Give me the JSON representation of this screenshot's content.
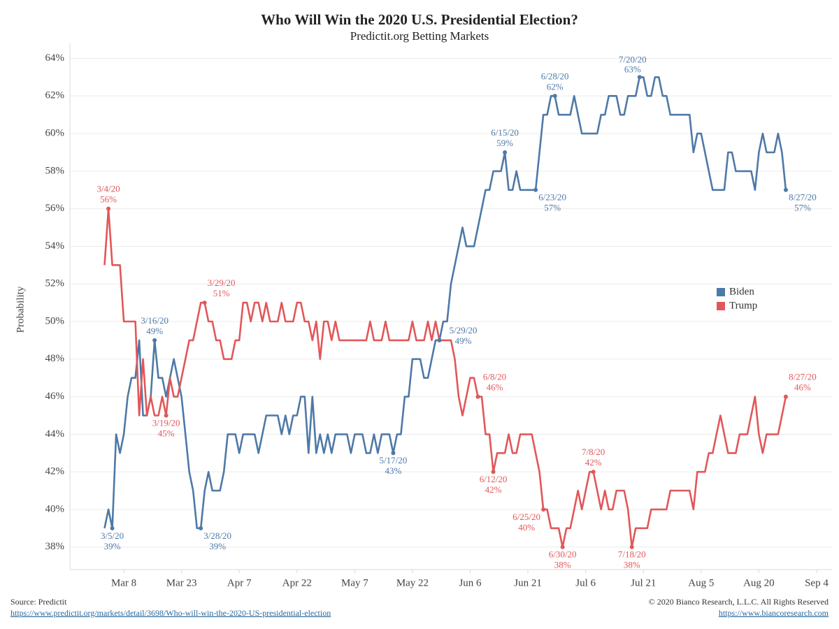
{
  "chart_data": {
    "type": "line",
    "title": "Who Will Win the 2020 U.S. Presidential Election?",
    "subtitle": "Predictit.org Betting Markets",
    "y_label": "Probability",
    "legend": "right",
    "grid": true,
    "xlim": [
      "2/23/20",
      "9/8/20"
    ],
    "xticks": [
      {
        "value": "3/8/20",
        "label": "Mar 8"
      },
      {
        "value": "3/23/20",
        "label": "Mar 23"
      },
      {
        "value": "4/7/20",
        "label": "Apr 7"
      },
      {
        "value": "4/22/20",
        "label": "Apr 22"
      },
      {
        "value": "5/7/20",
        "label": "May 7"
      },
      {
        "value": "5/22/20",
        "label": "May 22"
      },
      {
        "value": "6/6/20",
        "label": "Jun 6"
      },
      {
        "value": "6/21/20",
        "label": "Jun 21"
      },
      {
        "value": "7/6/20",
        "label": "Jul 6"
      },
      {
        "value": "7/21/20",
        "label": "Jul 21"
      },
      {
        "value": "8/5/20",
        "label": "Aug 5"
      },
      {
        "value": "8/20/20",
        "label": "Aug 20"
      },
      {
        "value": "9/4/20",
        "label": "Sep 4"
      }
    ],
    "ylim": [
      36.8,
      64.8
    ],
    "yticks": [
      {
        "value": 38,
        "label": "38%"
      },
      {
        "value": 40,
        "label": "40%"
      },
      {
        "value": 42,
        "label": "42%"
      },
      {
        "value": 44,
        "label": "44%"
      },
      {
        "value": 46,
        "label": "46%"
      },
      {
        "value": 48,
        "label": "48%"
      },
      {
        "value": 50,
        "label": "50%"
      },
      {
        "value": 52,
        "label": "52%"
      },
      {
        "value": 54,
        "label": "54%"
      },
      {
        "value": 56,
        "label": "56%"
      },
      {
        "value": 58,
        "label": "58%"
      },
      {
        "value": 60,
        "label": "60%"
      },
      {
        "value": 62,
        "label": "62%"
      },
      {
        "value": 64,
        "label": "64%"
      }
    ],
    "x": [
      "3/3/20",
      "3/4/20",
      "3/5/20",
      "3/6/20",
      "3/7/20",
      "3/8/20",
      "3/9/20",
      "3/10/20",
      "3/11/20",
      "3/12/20",
      "3/13/20",
      "3/14/20",
      "3/15/20",
      "3/16/20",
      "3/17/20",
      "3/18/20",
      "3/19/20",
      "3/20/20",
      "3/21/20",
      "3/22/20",
      "3/23/20",
      "3/24/20",
      "3/25/20",
      "3/26/20",
      "3/27/20",
      "3/28/20",
      "3/29/20",
      "3/30/20",
      "3/31/20",
      "4/1/20",
      "4/2/20",
      "4/3/20",
      "4/4/20",
      "4/5/20",
      "4/6/20",
      "4/7/20",
      "4/8/20",
      "4/9/20",
      "4/10/20",
      "4/11/20",
      "4/12/20",
      "4/13/20",
      "4/14/20",
      "4/15/20",
      "4/16/20",
      "4/17/20",
      "4/18/20",
      "4/19/20",
      "4/20/20",
      "4/21/20",
      "4/22/20",
      "4/23/20",
      "4/24/20",
      "4/25/20",
      "4/26/20",
      "4/27/20",
      "4/28/20",
      "4/29/20",
      "4/30/20",
      "5/1/20",
      "5/2/20",
      "5/3/20",
      "5/4/20",
      "5/5/20",
      "5/6/20",
      "5/7/20",
      "5/8/20",
      "5/9/20",
      "5/10/20",
      "5/11/20",
      "5/12/20",
      "5/13/20",
      "5/14/20",
      "5/15/20",
      "5/16/20",
      "5/17/20",
      "5/18/20",
      "5/19/20",
      "5/20/20",
      "5/21/20",
      "5/22/20",
      "5/23/20",
      "5/24/20",
      "5/25/20",
      "5/26/20",
      "5/27/20",
      "5/28/20",
      "5/29/20",
      "5/30/20",
      "5/31/20",
      "6/1/20",
      "6/2/20",
      "6/3/20",
      "6/4/20",
      "6/5/20",
      "6/6/20",
      "6/7/20",
      "6/8/20",
      "6/9/20",
      "6/10/20",
      "6/11/20",
      "6/12/20",
      "6/13/20",
      "6/14/20",
      "6/15/20",
      "6/16/20",
      "6/17/20",
      "6/18/20",
      "6/19/20",
      "6/20/20",
      "6/21/20",
      "6/22/20",
      "6/23/20",
      "6/24/20",
      "6/25/20",
      "6/26/20",
      "6/27/20",
      "6/28/20",
      "6/29/20",
      "6/30/20",
      "7/1/20",
      "7/2/20",
      "7/3/20",
      "7/4/20",
      "7/5/20",
      "7/6/20",
      "7/7/20",
      "7/8/20",
      "7/9/20",
      "7/10/20",
      "7/11/20",
      "7/12/20",
      "7/13/20",
      "7/14/20",
      "7/15/20",
      "7/16/20",
      "7/17/20",
      "7/18/20",
      "7/19/20",
      "7/20/20",
      "7/21/20",
      "7/22/20",
      "7/23/20",
      "7/24/20",
      "7/25/20",
      "7/26/20",
      "7/27/20",
      "7/28/20",
      "7/29/20",
      "7/30/20",
      "7/31/20",
      "8/1/20",
      "8/2/20",
      "8/3/20",
      "8/4/20",
      "8/5/20",
      "8/6/20",
      "8/7/20",
      "8/8/20",
      "8/9/20",
      "8/10/20",
      "8/11/20",
      "8/12/20",
      "8/13/20",
      "8/14/20",
      "8/15/20",
      "8/16/20",
      "8/17/20",
      "8/18/20",
      "8/19/20",
      "8/20/20",
      "8/21/20",
      "8/22/20",
      "8/23/20",
      "8/24/20",
      "8/25/20",
      "8/26/20",
      "8/27/20"
    ],
    "series": [
      {
        "name": "Biden",
        "color": "#4e79a7",
        "values": [
          39,
          40,
          39,
          44,
          43,
          44,
          46,
          47,
          47,
          49,
          45,
          45,
          46,
          49,
          47,
          47,
          46,
          47,
          48,
          47,
          46,
          44,
          42,
          41,
          39,
          39,
          41,
          42,
          41,
          41,
          41,
          42,
          44,
          44,
          44,
          43,
          44,
          44,
          44,
          44,
          43,
          44,
          45,
          45,
          45,
          45,
          44,
          45,
          44,
          45,
          45,
          46,
          46,
          43,
          46,
          43,
          44,
          43,
          44,
          43,
          44,
          44,
          44,
          44,
          43,
          44,
          44,
          44,
          43,
          43,
          44,
          43,
          44,
          44,
          44,
          43,
          44,
          44,
          46,
          46,
          48,
          48,
          48,
          47,
          47,
          48,
          49,
          49,
          50,
          50,
          52,
          53,
          54,
          55,
          54,
          54,
          54,
          55,
          56,
          57,
          57,
          58,
          58,
          58,
          59,
          57,
          57,
          58,
          57,
          57,
          57,
          57,
          57,
          59,
          61,
          61,
          62,
          62,
          61,
          61,
          61,
          61,
          62,
          61,
          60,
          60,
          60,
          60,
          60,
          61,
          61,
          62,
          62,
          62,
          61,
          61,
          62,
          62,
          62,
          63,
          63,
          62,
          62,
          63,
          63,
          62,
          62,
          61,
          61,
          61,
          61,
          61,
          61,
          59,
          60,
          60,
          59,
          58,
          57,
          57,
          57,
          57,
          59,
          59,
          58,
          58,
          58,
          58,
          58,
          57,
          59,
          60,
          59,
          59,
          59,
          60,
          59,
          57
        ]
      },
      {
        "name": "Trump",
        "color": "#e15759",
        "values": [
          53,
          56,
          53,
          53,
          53,
          50,
          50,
          50,
          50,
          45,
          48,
          45,
          46,
          45,
          45,
          46,
          45,
          47,
          46,
          46,
          47,
          48,
          49,
          49,
          50,
          51,
          51,
          50,
          50,
          49,
          49,
          48,
          48,
          48,
          49,
          49,
          51,
          51,
          50,
          51,
          51,
          50,
          51,
          50,
          50,
          50,
          51,
          50,
          50,
          50,
          51,
          51,
          50,
          50,
          49,
          50,
          48,
          50,
          50,
          49,
          50,
          49,
          49,
          49,
          49,
          49,
          49,
          49,
          49,
          50,
          49,
          49,
          49,
          50,
          49,
          49,
          49,
          49,
          49,
          49,
          50,
          49,
          49,
          49,
          50,
          49,
          50,
          49,
          49,
          49,
          49,
          48,
          46,
          45,
          46,
          47,
          47,
          46,
          46,
          44,
          44,
          42,
          43,
          43,
          43,
          44,
          43,
          43,
          44,
          44,
          44,
          44,
          43,
          42,
          40,
          40,
          39,
          39,
          39,
          38,
          39,
          39,
          40,
          41,
          40,
          41,
          42,
          42,
          41,
          40,
          41,
          40,
          40,
          41,
          41,
          41,
          40,
          38,
          39,
          39,
          39,
          39,
          40,
          40,
          40,
          40,
          40,
          41,
          41,
          41,
          41,
          41,
          41,
          40,
          42,
          42,
          42,
          43,
          43,
          44,
          45,
          44,
          43,
          43,
          43,
          44,
          44,
          44,
          45,
          46,
          44,
          43,
          44,
          44,
          44,
          44,
          45,
          46
        ]
      }
    ],
    "annotations": [
      {
        "series": "Trump",
        "x": "3/4/20",
        "y": 56,
        "label": "56%",
        "position": "above"
      },
      {
        "series": "Biden",
        "x": "3/5/20",
        "y": 39,
        "label": "39%",
        "position": "below"
      },
      {
        "series": "Biden",
        "x": "3/16/20",
        "y": 49,
        "label": "49%",
        "position": "above"
      },
      {
        "series": "Trump",
        "x": "3/19/20",
        "y": 45,
        "label": "45%",
        "position": "below"
      },
      {
        "series": "Biden",
        "x": "3/28/20",
        "y": 39,
        "label": "39%",
        "position": "below-right"
      },
      {
        "series": "Trump",
        "x": "3/29/20",
        "y": 51,
        "label": "51%",
        "position": "above-right"
      },
      {
        "series": "Biden",
        "x": "5/17/20",
        "y": 43,
        "label": "43%",
        "position": "below"
      },
      {
        "series": "Biden",
        "x": "5/29/20",
        "y": 49,
        "label": "49%",
        "position": "right"
      },
      {
        "series": "Trump",
        "x": "6/8/20",
        "y": 46,
        "label": "46%",
        "position": "above-right"
      },
      {
        "series": "Trump",
        "x": "6/12/20",
        "y": 42,
        "label": "42%",
        "position": "below"
      },
      {
        "series": "Biden",
        "x": "6/15/20",
        "y": 59,
        "label": "59%",
        "position": "above"
      },
      {
        "series": "Biden",
        "x": "6/23/20",
        "y": 57,
        "label": "57%",
        "position": "below-right"
      },
      {
        "series": "Trump",
        "x": "6/25/20",
        "y": 40,
        "label": "40%",
        "position": "below-left"
      },
      {
        "series": "Biden",
        "x": "6/28/20",
        "y": 62,
        "label": "62%",
        "position": "above"
      },
      {
        "series": "Trump",
        "x": "6/30/20",
        "y": 38,
        "label": "38%",
        "position": "below"
      },
      {
        "series": "Trump",
        "x": "7/8/20",
        "y": 42,
        "label": "42%",
        "position": "above"
      },
      {
        "series": "Trump",
        "x": "7/18/20",
        "y": 38,
        "label": "38%",
        "position": "below"
      },
      {
        "series": "Biden",
        "x": "7/20/20",
        "y": 63,
        "label": "63%",
        "position": "above-left"
      },
      {
        "series": "Biden",
        "x": "8/27/20",
        "y": 57,
        "label": "57%",
        "position": "below-right"
      },
      {
        "series": "Trump",
        "x": "8/27/20",
        "y": 46,
        "label": "46%",
        "position": "above-right"
      }
    ],
    "source": "Source: Predictit",
    "source_url": "https://www.predictit.org/markets/detail/3698/Who-will-win-the-2020-US-presidential-election",
    "copyright": "© 2020 Bianco Research, L.L.C. All Rights Reserved",
    "copyright_url": "https://www.biancoresearch.com"
  }
}
